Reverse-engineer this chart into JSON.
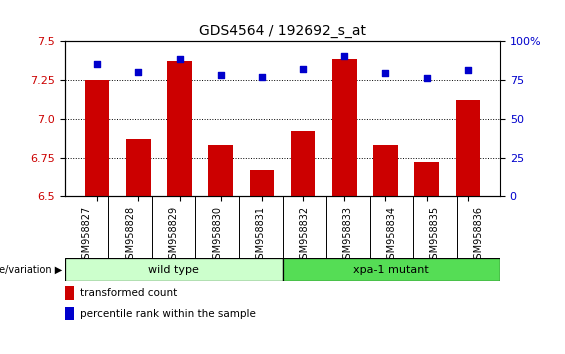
{
  "title": "GDS4564 / 192692_s_at",
  "categories": [
    "GSM958827",
    "GSM958828",
    "GSM958829",
    "GSM958830",
    "GSM958831",
    "GSM958832",
    "GSM958833",
    "GSM958834",
    "GSM958835",
    "GSM958836"
  ],
  "bar_values": [
    7.25,
    6.87,
    7.37,
    6.83,
    6.67,
    6.92,
    7.38,
    6.83,
    6.72,
    7.12
  ],
  "percentile_values": [
    85,
    80,
    88,
    78,
    77,
    82,
    90,
    79,
    76,
    81
  ],
  "bar_color": "#cc0000",
  "percentile_color": "#0000cc",
  "ylim": [
    6.5,
    7.5
  ],
  "y2lim": [
    0,
    100
  ],
  "yticks": [
    6.5,
    6.75,
    7.0,
    7.25,
    7.5
  ],
  "y2ticks": [
    0,
    25,
    50,
    75,
    100
  ],
  "groups": [
    {
      "label": "wild type",
      "start": 0,
      "end": 5,
      "color": "#ccffcc"
    },
    {
      "label": "xpa-1 mutant",
      "start": 5,
      "end": 10,
      "color": "#55dd55"
    }
  ],
  "group_label_prefix": "genotype/variation",
  "legend_bar_label": "transformed count",
  "legend_percentile_label": "percentile rank within the sample",
  "title_fontsize": 10,
  "tick_fontsize": 8,
  "label_fontsize": 8,
  "bar_bottom": 6.5,
  "xtick_gray": "#c8c8c8"
}
